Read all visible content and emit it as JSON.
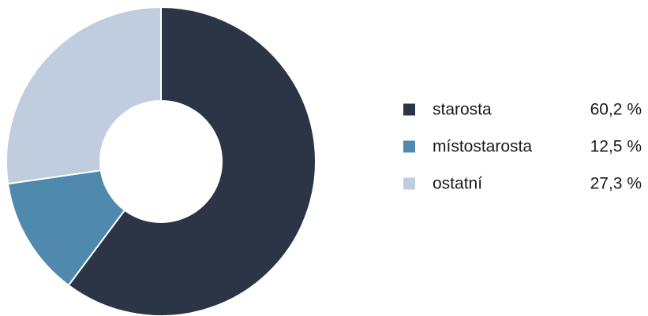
{
  "chart_data": {
    "type": "pie",
    "variant": "donut",
    "start_angle_deg": 0,
    "direction": "clockwise",
    "legend_position": "right",
    "slices": [
      {
        "label": "starosta",
        "value": 60.2,
        "value_text": "60,2 %",
        "color": "#2c3545"
      },
      {
        "label": "místostarosta",
        "value": 12.5,
        "value_text": "12,5 %",
        "color": "#4f89ad"
      },
      {
        "label": "ostatní",
        "value": 27.3,
        "value_text": "27,3 %",
        "color": "#bfcddf"
      }
    ]
  }
}
